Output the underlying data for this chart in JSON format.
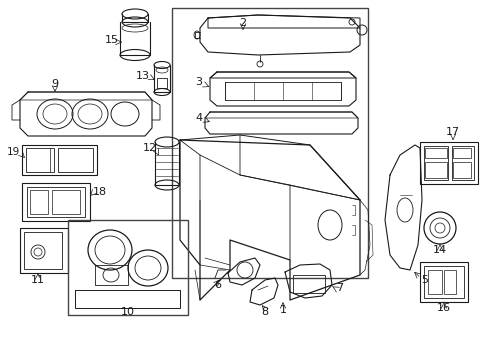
{
  "background_color": "#ffffff",
  "fig_width": 4.89,
  "fig_height": 3.6,
  "dpi": 100,
  "image_data": ""
}
